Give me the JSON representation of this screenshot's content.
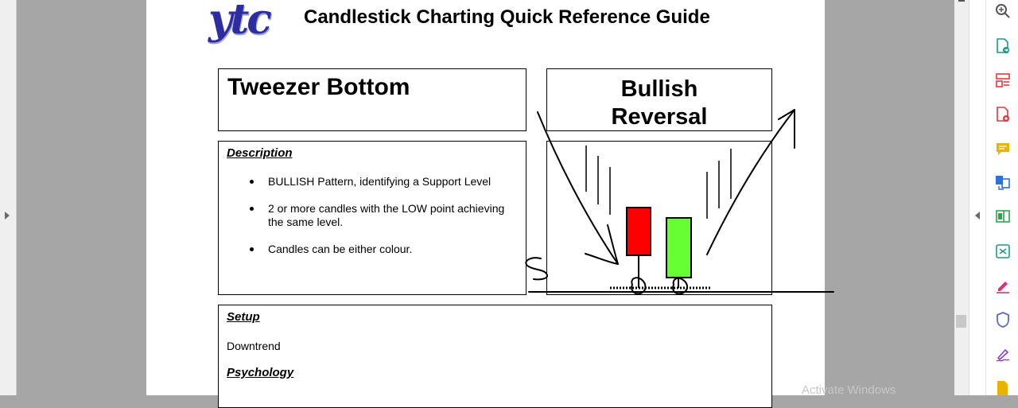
{
  "document": {
    "logo_text": "ytc",
    "title": "Candlestick Charting Quick Reference Guide",
    "pattern_name": "Tweezer Bottom",
    "pattern_type_line1": "Bullish",
    "pattern_type_line2": "Reversal",
    "description": {
      "heading": "Description",
      "bullets": [
        "BULLISH Pattern, identifying a Support Level",
        "2 or more candles with the LOW point achieving the same level.",
        "Candles can be either colour."
      ]
    },
    "setup": {
      "heading": "Setup",
      "value": "Downtrend",
      "psychology_heading": "Psychology"
    },
    "candles": [
      {
        "color": "#ff0000",
        "type": "bearish"
      },
      {
        "color": "#66ff33",
        "type": "bullish"
      }
    ],
    "annotation_label": "S"
  },
  "toolbar": {
    "icons": [
      "zoom-icon",
      "export-pdf-icon",
      "organize-pages-icon",
      "create-pdf-icon",
      "comment-icon",
      "combine-files-icon",
      "edit-pdf-icon",
      "compress-pdf-icon",
      "fill-sign-icon",
      "protect-icon",
      "sign-icon",
      "more-tools-icon"
    ],
    "colors": [
      "#555555",
      "#1b9a8c",
      "#e0383e",
      "#e0383e",
      "#e8b400",
      "#2f6fd8",
      "#2aa84a",
      "#1b9a8c",
      "#d6347a",
      "#5a6acb",
      "#8a3fc6",
      "#e8b400"
    ]
  },
  "watermark": "Activate Windows"
}
